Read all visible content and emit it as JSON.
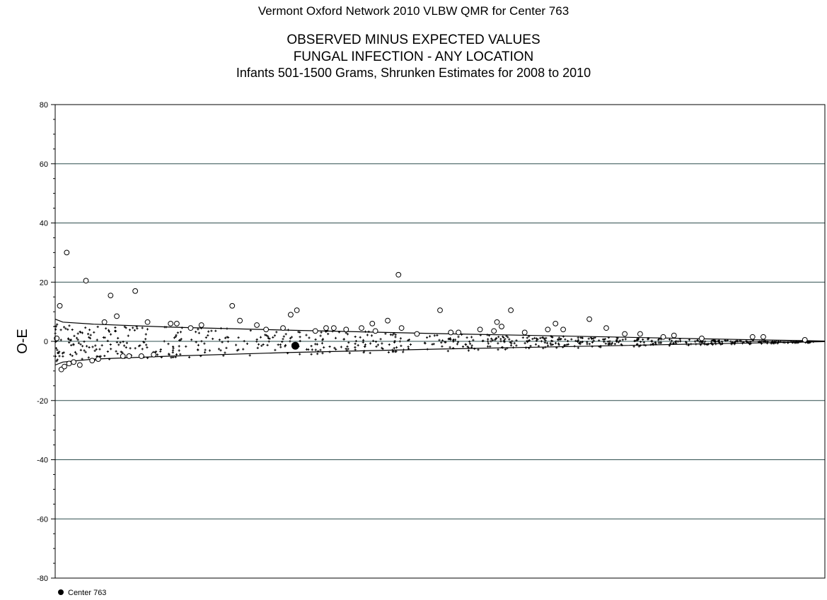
{
  "header": {
    "report_title": "Vermont Oxford Network 2010 VLBW QMR for Center 763",
    "chart_title": "OBSERVED MINUS EXPECTED VALUES",
    "measure": "FUNGAL INFECTION - ANY LOCATION",
    "subtitle": "Infants 501-1500 Grams, Shrunken Estimates for 2008 to 2010"
  },
  "legend": {
    "label": "Center 763",
    "placement": "bottom-left"
  },
  "colors": {
    "line": "#000000",
    "grid": "#2f4f4f",
    "marker": "#000000"
  },
  "chart_data": {
    "type": "scatter",
    "title": "OBSERVED MINUS EXPECTED VALUES",
    "ylabel": "O-E",
    "xlabel": "",
    "ylim": [
      -80,
      80
    ],
    "yticks": [
      -80,
      -60,
      -40,
      -20,
      0,
      20,
      40,
      60,
      80
    ],
    "xlim": [
      0,
      1000
    ],
    "grid": "horizontal",
    "series": [
      {
        "name": "Center 763",
        "marker": "filled-circle",
        "points": [
          [
            312,
            -1.5
          ]
        ]
      },
      {
        "marker": "open-circle",
        "points": [
          [
            2,
            1
          ],
          [
            6,
            12
          ],
          [
            8,
            -9.5
          ],
          [
            12,
            -8.5
          ],
          [
            15,
            30
          ],
          [
            18,
            -7.5
          ],
          [
            24,
            -7
          ],
          [
            32,
            -8
          ],
          [
            40,
            20.5
          ],
          [
            48,
            -6.5
          ],
          [
            56,
            -6
          ],
          [
            64,
            6.5
          ],
          [
            72,
            15.5
          ],
          [
            80,
            8.5
          ],
          [
            88,
            -5
          ],
          [
            96,
            -5
          ],
          [
            104,
            17
          ],
          [
            112,
            -5
          ],
          [
            120,
            6.5
          ],
          [
            128,
            -4.5
          ],
          [
            150,
            6
          ],
          [
            158,
            6
          ],
          [
            176,
            4.5
          ],
          [
            190,
            5.5
          ],
          [
            230,
            12
          ],
          [
            240,
            7
          ],
          [
            262,
            5.5
          ],
          [
            274,
            4
          ],
          [
            296,
            4.5
          ],
          [
            306,
            9
          ],
          [
            314,
            10.5
          ],
          [
            338,
            3.5
          ],
          [
            352,
            4.5
          ],
          [
            362,
            4.5
          ],
          [
            378,
            4
          ],
          [
            398,
            4.5
          ],
          [
            412,
            6
          ],
          [
            416,
            3.5
          ],
          [
            432,
            7
          ],
          [
            446,
            22.5
          ],
          [
            450,
            4.5
          ],
          [
            470,
            2.5
          ],
          [
            500,
            10.5
          ],
          [
            514,
            3
          ],
          [
            524,
            3
          ],
          [
            552,
            4
          ],
          [
            570,
            3.5
          ],
          [
            574,
            6.5
          ],
          [
            580,
            5
          ],
          [
            592,
            10.5
          ],
          [
            610,
            3
          ],
          [
            640,
            4
          ],
          [
            650,
            6
          ],
          [
            660,
            4
          ],
          [
            694,
            7.5
          ],
          [
            716,
            4.5
          ],
          [
            740,
            2.5
          ],
          [
            760,
            2.5
          ],
          [
            790,
            1.5
          ],
          [
            804,
            2
          ],
          [
            840,
            1
          ],
          [
            906,
            1.5
          ],
          [
            920,
            1.5
          ],
          [
            974,
            0.5
          ]
        ]
      }
    ],
    "control_limits": {
      "upper": [
        [
          0,
          7.5
        ],
        [
          10,
          6.5
        ],
        [
          50,
          5.8
        ],
        [
          150,
          4.8
        ],
        [
          300,
          3.8
        ],
        [
          500,
          2.6
        ],
        [
          700,
          1.6
        ],
        [
          850,
          0.8
        ],
        [
          960,
          0.3
        ],
        [
          1000,
          0.1
        ]
      ],
      "lower": [
        [
          0,
          -8
        ],
        [
          10,
          -7
        ],
        [
          50,
          -6
        ],
        [
          150,
          -5
        ],
        [
          300,
          -3.8
        ],
        [
          500,
          -2.6
        ],
        [
          700,
          -1.6
        ],
        [
          850,
          -0.8
        ],
        [
          960,
          -0.3
        ],
        [
          1000,
          -0.1
        ]
      ]
    }
  }
}
